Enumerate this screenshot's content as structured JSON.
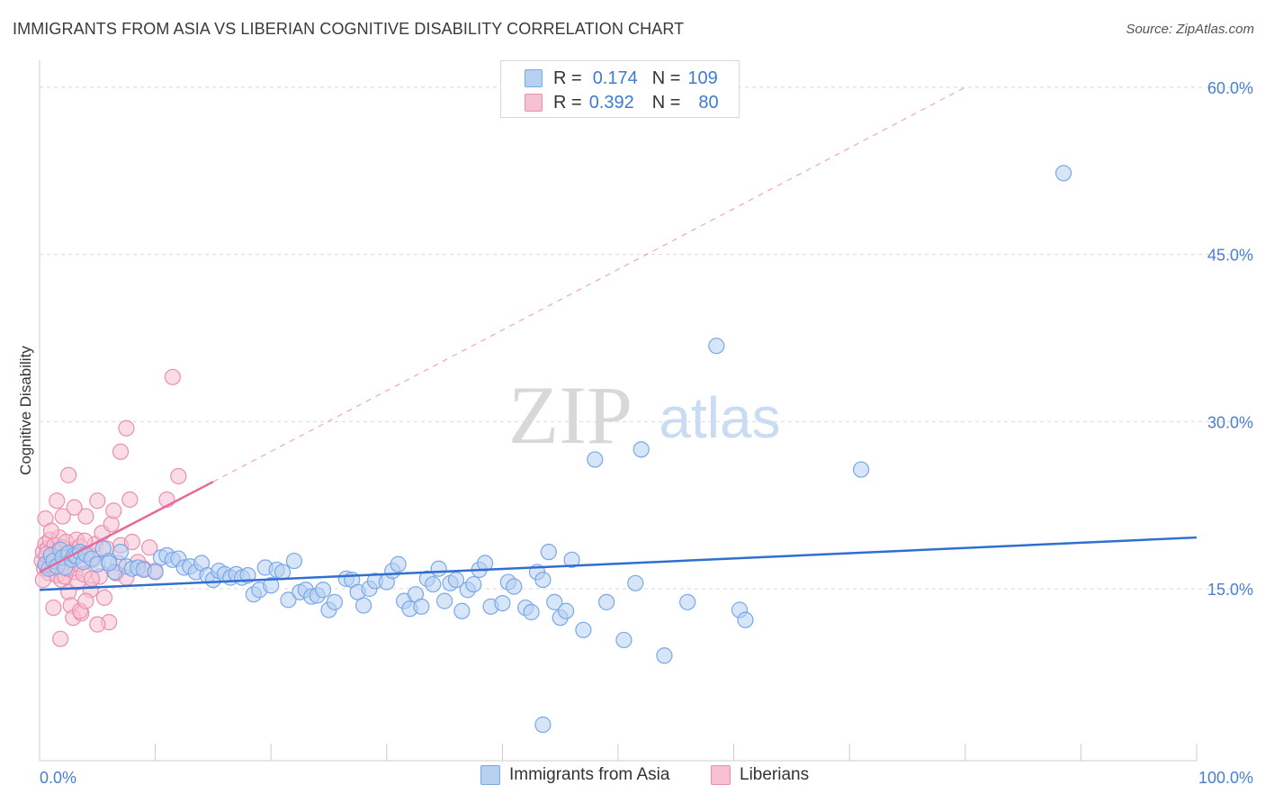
{
  "header": {
    "title": "IMMIGRANTS FROM ASIA VS LIBERIAN COGNITIVE DISABILITY CORRELATION CHART",
    "source": "Source: ZipAtlas.com"
  },
  "legend_top": {
    "rows": [
      {
        "r_label": "R =",
        "r_value": "0.174",
        "n_label": "N =",
        "n_value": "109"
      },
      {
        "r_label": "R =",
        "r_value": "0.392",
        "n_label": "N =",
        "n_value": "80"
      }
    ]
  },
  "legend_bottom": {
    "items": [
      "Immigrants from Asia",
      "Liberians"
    ]
  },
  "watermark": {
    "zip": "ZIP",
    "atlas": "atlas"
  },
  "colors": {
    "blue_fill": "#b6d0f2",
    "blue_stroke": "#7aa8e6",
    "blue_line": "#2f6fd0",
    "pink_fill": "#f6c0d2",
    "pink_stroke": "#ea8fb0",
    "pink_line": "#e8689a",
    "tick_label": "#4a7fd0",
    "grid": "#d9d9d9"
  },
  "chart_data": {
    "type": "scatter",
    "title": "IMMIGRANTS FROM ASIA VS LIBERIAN COGNITIVE DISABILITY CORRELATION CHART",
    "xlabel": "",
    "ylabel": "Cognitive Disability",
    "xlim": [
      0,
      100
    ],
    "ylim": [
      0,
      63
    ],
    "x_tick_labels": [
      "0.0%",
      "100.0%"
    ],
    "y_ticks": [
      15,
      30,
      45,
      60
    ],
    "y_tick_labels": [
      "15.0%",
      "30.0%",
      "45.0%",
      "60.0%"
    ],
    "grid": "horizontal dashed",
    "legend_position": "top-center and bottom",
    "series": [
      {
        "name": "Immigrants from Asia",
        "color": "#7aa8e6",
        "trend": {
          "x": [
            0,
            100
          ],
          "y": [
            14.9,
            19.6
          ]
        },
        "points": [
          [
            0.5,
            17.2
          ],
          [
            0.8,
            16.8
          ],
          [
            1.0,
            18.0
          ],
          [
            1.2,
            17.5
          ],
          [
            1.5,
            17.0
          ],
          [
            1.8,
            18.5
          ],
          [
            2.0,
            17.8
          ],
          [
            2.2,
            16.9
          ],
          [
            2.5,
            18.2
          ],
          [
            2.8,
            17.6
          ],
          [
            3.0,
            18.0
          ],
          [
            3.2,
            17.9
          ],
          [
            3.5,
            18.3
          ],
          [
            3.8,
            17.4
          ],
          [
            4.0,
            18.1
          ],
          [
            4.5,
            17.7
          ],
          [
            5.0,
            17.2
          ],
          [
            5.5,
            18.6
          ],
          [
            6.0,
            17.5
          ],
          [
            6.5,
            16.5
          ],
          [
            7.0,
            18.3
          ],
          [
            7.5,
            17.0
          ],
          [
            8.0,
            16.8
          ],
          [
            8.5,
            16.9
          ],
          [
            9.0,
            16.7
          ],
          [
            10.0,
            16.5
          ],
          [
            10.5,
            17.8
          ],
          [
            11.0,
            18.0
          ],
          [
            11.5,
            17.6
          ],
          [
            12.0,
            17.7
          ],
          [
            12.5,
            16.9
          ],
          [
            13.0,
            17.0
          ],
          [
            13.5,
            16.5
          ],
          [
            14.0,
            17.3
          ],
          [
            14.5,
            16.2
          ],
          [
            15.0,
            15.8
          ],
          [
            15.5,
            16.6
          ],
          [
            16.0,
            16.3
          ],
          [
            16.5,
            16.0
          ],
          [
            17.0,
            16.3
          ],
          [
            17.5,
            16.0
          ],
          [
            18.0,
            16.2
          ],
          [
            18.5,
            14.5
          ],
          [
            19.0,
            14.9
          ],
          [
            19.5,
            16.9
          ],
          [
            20.0,
            15.3
          ],
          [
            20.5,
            16.7
          ],
          [
            21.0,
            16.5
          ],
          [
            21.5,
            14.0
          ],
          [
            22.0,
            17.5
          ],
          [
            22.5,
            14.7
          ],
          [
            23.0,
            14.9
          ],
          [
            23.5,
            14.3
          ],
          [
            24.0,
            14.4
          ],
          [
            24.5,
            14.9
          ],
          [
            25.0,
            13.1
          ],
          [
            25.5,
            13.8
          ],
          [
            26.5,
            15.9
          ],
          [
            27.0,
            15.8
          ],
          [
            27.5,
            14.7
          ],
          [
            28.0,
            13.5
          ],
          [
            28.5,
            15.0
          ],
          [
            29.0,
            15.7
          ],
          [
            30.0,
            15.6
          ],
          [
            30.5,
            16.6
          ],
          [
            31.0,
            17.2
          ],
          [
            31.5,
            13.9
          ],
          [
            32.0,
            13.2
          ],
          [
            32.5,
            14.5
          ],
          [
            33.0,
            13.4
          ],
          [
            33.5,
            15.9
          ],
          [
            34.0,
            15.4
          ],
          [
            34.5,
            16.8
          ],
          [
            35.0,
            13.9
          ],
          [
            35.5,
            15.5
          ],
          [
            36.0,
            15.8
          ],
          [
            36.5,
            13.0
          ],
          [
            37.0,
            14.9
          ],
          [
            37.5,
            15.4
          ],
          [
            38.0,
            16.7
          ],
          [
            38.5,
            17.3
          ],
          [
            39.0,
            13.4
          ],
          [
            40.0,
            13.7
          ],
          [
            40.5,
            15.6
          ],
          [
            41.0,
            15.2
          ],
          [
            42.0,
            13.3
          ],
          [
            42.5,
            12.9
          ],
          [
            43.0,
            16.5
          ],
          [
            43.5,
            15.8
          ],
          [
            44.0,
            18.3
          ],
          [
            44.5,
            13.8
          ],
          [
            45.0,
            12.4
          ],
          [
            45.5,
            13.0
          ],
          [
            46.0,
            17.6
          ],
          [
            47.0,
            11.3
          ],
          [
            48.0,
            26.6
          ],
          [
            49.0,
            13.8
          ],
          [
            50.5,
            10.4
          ],
          [
            51.5,
            15.5
          ],
          [
            52.0,
            27.5
          ],
          [
            54.0,
            9.0
          ],
          [
            56.0,
            13.8
          ],
          [
            58.5,
            36.8
          ],
          [
            60.5,
            13.1
          ],
          [
            61.0,
            12.2
          ],
          [
            71.0,
            25.7
          ],
          [
            88.5,
            52.3
          ],
          [
            43.5,
            2.8
          ],
          [
            6.0,
            17.3
          ]
        ]
      },
      {
        "name": "Liberians",
        "color": "#ea8fb0",
        "trend": {
          "x": [
            0,
            15
          ],
          "y": [
            16.5,
            24.6
          ],
          "dashed_extension": {
            "x": [
              15,
              80
            ],
            "y": [
              24.6,
              60.0
            ]
          }
        },
        "points": [
          [
            0.2,
            17.5
          ],
          [
            0.3,
            18.3
          ],
          [
            0.4,
            16.8
          ],
          [
            0.5,
            19.0
          ],
          [
            0.6,
            17.1
          ],
          [
            0.7,
            18.6
          ],
          [
            0.8,
            16.4
          ],
          [
            0.9,
            19.4
          ],
          [
            1.0,
            18.0
          ],
          [
            1.1,
            17.2
          ],
          [
            1.2,
            16.9
          ],
          [
            1.3,
            18.9
          ],
          [
            1.4,
            17.6
          ],
          [
            1.5,
            16.2
          ],
          [
            1.6,
            18.4
          ],
          [
            1.7,
            19.6
          ],
          [
            1.8,
            17.9
          ],
          [
            1.9,
            15.8
          ],
          [
            2.0,
            18.7
          ],
          [
            2.1,
            17.4
          ],
          [
            2.2,
            16.1
          ],
          [
            2.3,
            19.2
          ],
          [
            2.4,
            17.0
          ],
          [
            2.5,
            14.7
          ],
          [
            2.6,
            18.1
          ],
          [
            2.7,
            13.5
          ],
          [
            2.8,
            17.8
          ],
          [
            2.9,
            12.4
          ],
          [
            3.0,
            18.5
          ],
          [
            3.1,
            16.5
          ],
          [
            3.2,
            19.4
          ],
          [
            3.3,
            15.6
          ],
          [
            3.4,
            17.2
          ],
          [
            3.5,
            18.8
          ],
          [
            3.6,
            12.8
          ],
          [
            3.8,
            16.3
          ],
          [
            4.0,
            21.5
          ],
          [
            4.2,
            18.2
          ],
          [
            4.4,
            14.9
          ],
          [
            4.6,
            17.6
          ],
          [
            4.8,
            19.0
          ],
          [
            5.0,
            22.9
          ],
          [
            5.2,
            16.1
          ],
          [
            5.4,
            20.0
          ],
          [
            5.6,
            14.2
          ],
          [
            5.8,
            18.6
          ],
          [
            6.0,
            12.0
          ],
          [
            6.2,
            20.8
          ],
          [
            6.4,
            22.0
          ],
          [
            6.6,
            16.4
          ],
          [
            6.8,
            17.3
          ],
          [
            7.0,
            18.9
          ],
          [
            7.5,
            16.0
          ],
          [
            8.0,
            19.2
          ],
          [
            8.5,
            17.4
          ],
          [
            9.0,
            16.8
          ],
          [
            9.5,
            18.7
          ],
          [
            10.0,
            16.6
          ],
          [
            11.0,
            23.0
          ],
          [
            11.5,
            34.0
          ],
          [
            12.0,
            25.1
          ],
          [
            7.0,
            27.3
          ],
          [
            7.5,
            29.4
          ],
          [
            0.5,
            21.3
          ],
          [
            1.0,
            20.2
          ],
          [
            1.5,
            22.9
          ],
          [
            2.0,
            21.5
          ],
          [
            2.5,
            25.2
          ],
          [
            3.0,
            22.3
          ],
          [
            3.5,
            13.0
          ],
          [
            4.0,
            13.9
          ],
          [
            4.5,
            15.9
          ],
          [
            5.0,
            11.8
          ],
          [
            1.8,
            10.5
          ],
          [
            0.3,
            15.8
          ],
          [
            0.6,
            18.1
          ],
          [
            2.4,
            16.8
          ],
          [
            3.9,
            19.3
          ],
          [
            7.8,
            23.0
          ],
          [
            1.2,
            13.3
          ]
        ]
      }
    ]
  }
}
